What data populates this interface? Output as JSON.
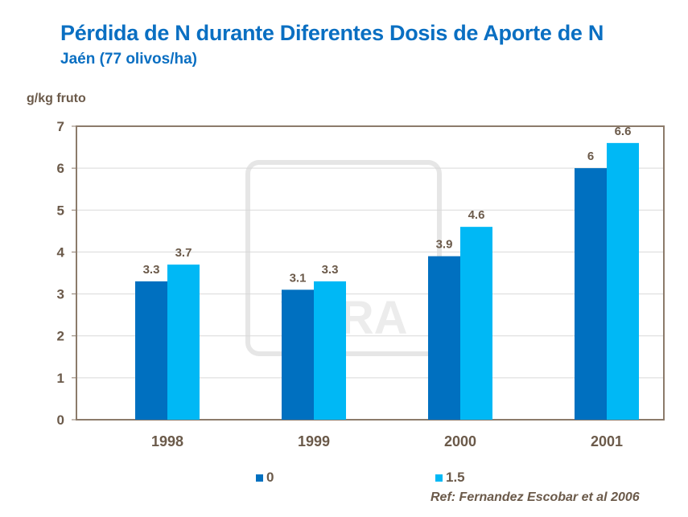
{
  "chart_data": {
    "type": "bar",
    "title": "Pérdida de N durante Diferentes Dosis de Aporte de N",
    "subtitle": "Jaén (77 olivos/ha)",
    "ylabel": "g/kg fruto",
    "xlabel": "",
    "categories": [
      "1998",
      "1999",
      "2000",
      "2001"
    ],
    "series": [
      {
        "name": "0",
        "values": [
          3.3,
          3.1,
          3.9,
          6
        ],
        "labels": [
          "3.3",
          "3.1",
          "3.9",
          "6"
        ],
        "color": "#0070c0"
      },
      {
        "name": "1.5",
        "values": [
          3.7,
          3.3,
          4.6,
          6.6
        ],
        "labels": [
          "3.7",
          "3.3",
          "4.6",
          "6.6"
        ],
        "color": "#00b8f5"
      }
    ],
    "ylim": [
      0,
      7
    ],
    "yticks": [
      "0",
      "1",
      "2",
      "3",
      "4",
      "5",
      "6",
      "7"
    ],
    "grid": true,
    "legend_placement": "bottom",
    "reference": "Ref: Fernandez Escobar et al 2006",
    "watermark": "YARA",
    "colors": {
      "title": "#0a6fc2",
      "axis_text": "#6b5a4a",
      "axis_line": "#8c7b6b",
      "grid": "#d9d9d9"
    }
  }
}
